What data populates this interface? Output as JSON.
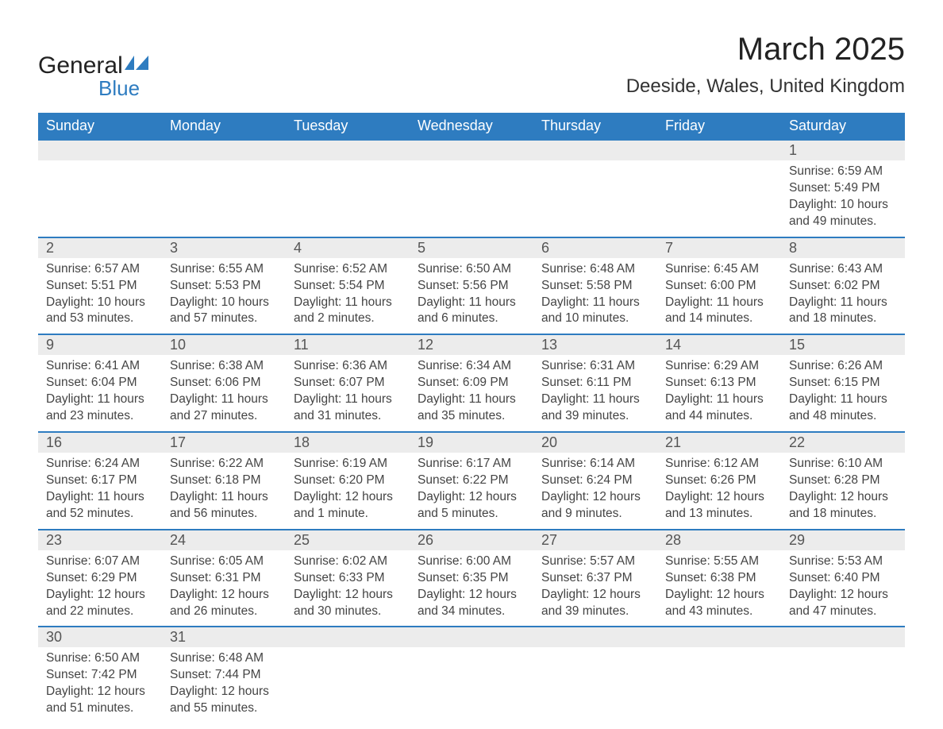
{
  "brand": {
    "word1": "General",
    "word2": "Blue",
    "text_color": "#222222",
    "accent_color": "#2e7cc0"
  },
  "title": "March 2025",
  "location": "Deeside, Wales, United Kingdom",
  "colors": {
    "header_bg": "#2e7cc0",
    "header_text": "#ffffff",
    "day_num_bg": "#ececec",
    "day_num_text": "#555555",
    "body_text": "#444444",
    "row_divider": "#2e7cc0",
    "page_bg": "#ffffff"
  },
  "fonts": {
    "title_size_pt": 30,
    "location_size_pt": 18,
    "header_size_pt": 14,
    "daynum_size_pt": 14,
    "cell_size_pt": 12
  },
  "day_headers": [
    "Sunday",
    "Monday",
    "Tuesday",
    "Wednesday",
    "Thursday",
    "Friday",
    "Saturday"
  ],
  "labels": {
    "sunrise": "Sunrise:",
    "sunset": "Sunset:",
    "daylight": "Daylight:"
  },
  "weeks": [
    [
      null,
      null,
      null,
      null,
      null,
      null,
      {
        "n": "1",
        "sunrise": "6:59 AM",
        "sunset": "5:49 PM",
        "daylight": "10 hours and 49 minutes."
      }
    ],
    [
      {
        "n": "2",
        "sunrise": "6:57 AM",
        "sunset": "5:51 PM",
        "daylight": "10 hours and 53 minutes."
      },
      {
        "n": "3",
        "sunrise": "6:55 AM",
        "sunset": "5:53 PM",
        "daylight": "10 hours and 57 minutes."
      },
      {
        "n": "4",
        "sunrise": "6:52 AM",
        "sunset": "5:54 PM",
        "daylight": "11 hours and 2 minutes."
      },
      {
        "n": "5",
        "sunrise": "6:50 AM",
        "sunset": "5:56 PM",
        "daylight": "11 hours and 6 minutes."
      },
      {
        "n": "6",
        "sunrise": "6:48 AM",
        "sunset": "5:58 PM",
        "daylight": "11 hours and 10 minutes."
      },
      {
        "n": "7",
        "sunrise": "6:45 AM",
        "sunset": "6:00 PM",
        "daylight": "11 hours and 14 minutes."
      },
      {
        "n": "8",
        "sunrise": "6:43 AM",
        "sunset": "6:02 PM",
        "daylight": "11 hours and 18 minutes."
      }
    ],
    [
      {
        "n": "9",
        "sunrise": "6:41 AM",
        "sunset": "6:04 PM",
        "daylight": "11 hours and 23 minutes."
      },
      {
        "n": "10",
        "sunrise": "6:38 AM",
        "sunset": "6:06 PM",
        "daylight": "11 hours and 27 minutes."
      },
      {
        "n": "11",
        "sunrise": "6:36 AM",
        "sunset": "6:07 PM",
        "daylight": "11 hours and 31 minutes."
      },
      {
        "n": "12",
        "sunrise": "6:34 AM",
        "sunset": "6:09 PM",
        "daylight": "11 hours and 35 minutes."
      },
      {
        "n": "13",
        "sunrise": "6:31 AM",
        "sunset": "6:11 PM",
        "daylight": "11 hours and 39 minutes."
      },
      {
        "n": "14",
        "sunrise": "6:29 AM",
        "sunset": "6:13 PM",
        "daylight": "11 hours and 44 minutes."
      },
      {
        "n": "15",
        "sunrise": "6:26 AM",
        "sunset": "6:15 PM",
        "daylight": "11 hours and 48 minutes."
      }
    ],
    [
      {
        "n": "16",
        "sunrise": "6:24 AM",
        "sunset": "6:17 PM",
        "daylight": "11 hours and 52 minutes."
      },
      {
        "n": "17",
        "sunrise": "6:22 AM",
        "sunset": "6:18 PM",
        "daylight": "11 hours and 56 minutes."
      },
      {
        "n": "18",
        "sunrise": "6:19 AM",
        "sunset": "6:20 PM",
        "daylight": "12 hours and 1 minute."
      },
      {
        "n": "19",
        "sunrise": "6:17 AM",
        "sunset": "6:22 PM",
        "daylight": "12 hours and 5 minutes."
      },
      {
        "n": "20",
        "sunrise": "6:14 AM",
        "sunset": "6:24 PM",
        "daylight": "12 hours and 9 minutes."
      },
      {
        "n": "21",
        "sunrise": "6:12 AM",
        "sunset": "6:26 PM",
        "daylight": "12 hours and 13 minutes."
      },
      {
        "n": "22",
        "sunrise": "6:10 AM",
        "sunset": "6:28 PM",
        "daylight": "12 hours and 18 minutes."
      }
    ],
    [
      {
        "n": "23",
        "sunrise": "6:07 AM",
        "sunset": "6:29 PM",
        "daylight": "12 hours and 22 minutes."
      },
      {
        "n": "24",
        "sunrise": "6:05 AM",
        "sunset": "6:31 PM",
        "daylight": "12 hours and 26 minutes."
      },
      {
        "n": "25",
        "sunrise": "6:02 AM",
        "sunset": "6:33 PM",
        "daylight": "12 hours and 30 minutes."
      },
      {
        "n": "26",
        "sunrise": "6:00 AM",
        "sunset": "6:35 PM",
        "daylight": "12 hours and 34 minutes."
      },
      {
        "n": "27",
        "sunrise": "5:57 AM",
        "sunset": "6:37 PM",
        "daylight": "12 hours and 39 minutes."
      },
      {
        "n": "28",
        "sunrise": "5:55 AM",
        "sunset": "6:38 PM",
        "daylight": "12 hours and 43 minutes."
      },
      {
        "n": "29",
        "sunrise": "5:53 AM",
        "sunset": "6:40 PM",
        "daylight": "12 hours and 47 minutes."
      }
    ],
    [
      {
        "n": "30",
        "sunrise": "6:50 AM",
        "sunset": "7:42 PM",
        "daylight": "12 hours and 51 minutes."
      },
      {
        "n": "31",
        "sunrise": "6:48 AM",
        "sunset": "7:44 PM",
        "daylight": "12 hours and 55 minutes."
      },
      null,
      null,
      null,
      null,
      null
    ]
  ]
}
